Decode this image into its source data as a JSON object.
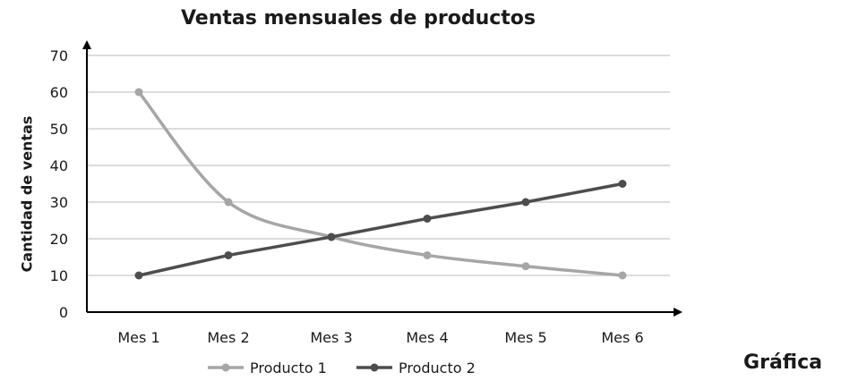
{
  "caption": "Gráfica",
  "chart_data": {
    "type": "line",
    "title": "Ventas mensuales de productos",
    "xlabel": "",
    "ylabel": "Cantidad de ventas",
    "categories": [
      "Mes 1",
      "Mes 2",
      "Mes 3",
      "Mes 4",
      "Mes 5",
      "Mes 6"
    ],
    "ylim": [
      0,
      70
    ],
    "yticks": [
      0,
      10,
      20,
      30,
      40,
      50,
      60,
      70
    ],
    "grid": true,
    "legend_position": "bottom",
    "series": [
      {
        "name": "Producto 1",
        "values": [
          60,
          30,
          20.5,
          15.5,
          12.5,
          10
        ],
        "color": "#a6a6a6",
        "smooth": true
      },
      {
        "name": "Producto 2",
        "values": [
          10,
          15.5,
          20.5,
          25.5,
          30,
          35
        ],
        "color": "#4d4d4d",
        "smooth": false
      }
    ]
  }
}
